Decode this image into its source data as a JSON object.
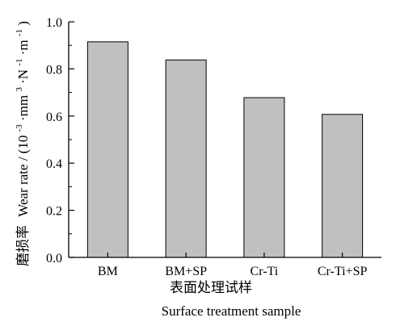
{
  "chart_data": {
    "type": "bar",
    "categories": [
      "BM",
      "BM+SP",
      "Cr-Ti",
      "Cr-Ti+SP"
    ],
    "series": [
      {
        "values": [
          0.915,
          0.838,
          0.678,
          0.607
        ]
      }
    ],
    "xlabel": "表面处理试样",
    "xlabel_en": "Surface treatment sample",
    "ylabel_zh": "磨损率",
    "ylabel": "Wear rate / (10",
    "ylabel_parts": {
      "sup1": "-3",
      "mid1": "·mm",
      "sup2": "3",
      "mid2": "·N",
      "sup3": "-1",
      "mid3": "·m",
      "sup4": "-1",
      "end": ")"
    },
    "ylim": [
      0.0,
      1.0
    ],
    "yticks": [
      "0.0",
      "0.2",
      "0.4",
      "0.6",
      "0.8",
      "1.0"
    ],
    "grid": false,
    "colors": {
      "bar_fill": "#c0c0c0",
      "bar_stroke": "#000000",
      "axis": "#000000"
    }
  }
}
